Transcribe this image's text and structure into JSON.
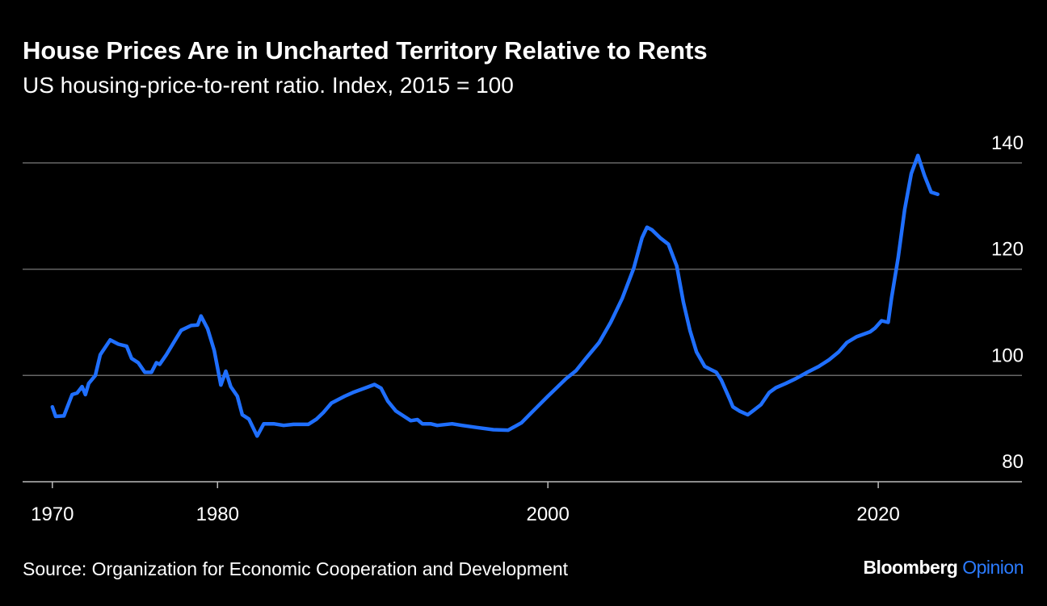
{
  "chart_data": {
    "type": "line",
    "title": "House Prices Are in Uncharted Territory Relative to Rents",
    "subtitle": "US housing-price-to-rent ratio. Index, 2015 = 100",
    "source": "Source: Organization for Economic Cooperation and Development",
    "brand": [
      "Bloomberg",
      "Opinion"
    ],
    "xlim": [
      1968.2,
      2028.7
    ],
    "xticks": [
      1970,
      1980,
      2000,
      2020
    ],
    "ylim": [
      80,
      145
    ],
    "yticks": [
      80,
      100,
      120,
      140
    ],
    "grid": true,
    "series": [
      {
        "color": "#1f6fff",
        "x": [
          1970.0,
          1970.2,
          1970.7,
          1971.2,
          1971.5,
          1971.8,
          1972.0,
          1972.2,
          1972.6,
          1972.9,
          1973.5,
          1974.0,
          1974.5,
          1974.8,
          1975.2,
          1975.6,
          1976.0,
          1976.3,
          1976.5,
          1976.9,
          1977.5,
          1977.8,
          1978.4,
          1978.8,
          1979.0,
          1979.4,
          1979.8,
          1980.2,
          1980.5,
          1980.8,
          1981.2,
          1981.5,
          1981.9,
          1982.4,
          1982.8,
          1983.4,
          1984.0,
          1984.6,
          1985.5,
          1986.0,
          1986.4,
          1986.9,
          1987.7,
          1988.2,
          1988.9,
          1989.5,
          1989.9,
          1990.3,
          1990.8,
          1991.7,
          1992.1,
          1992.4,
          1992.9,
          1993.3,
          1994.2,
          1994.8,
          1995.7,
          1996.7,
          1997.6,
          1998.4,
          1999.1,
          2000.0,
          2000.6,
          2001.1,
          2001.7,
          2002.3,
          2003.1,
          2003.8,
          2004.5,
          2005.2,
          2005.7,
          2006.0,
          2006.3,
          2006.8,
          2007.3,
          2007.8,
          2008.2,
          2008.6,
          2009.0,
          2009.5,
          2009.8,
          2010.2,
          2010.5,
          2011.0,
          2011.2,
          2011.6,
          2012.1,
          2012.4,
          2012.9,
          2013.4,
          2013.8,
          2014.4,
          2015.0,
          2015.7,
          2016.4,
          2017.0,
          2017.6,
          2018.1,
          2018.7,
          2019.5,
          2019.8,
          2020.2,
          2020.6,
          2020.8,
          2021.2,
          2021.6,
          2022.0,
          2022.4,
          2022.8,
          2023.2,
          2023.6
        ],
        "values": [
          94.1,
          92.3,
          92.4,
          96.4,
          96.7,
          97.9,
          96.4,
          98.5,
          100,
          103.9,
          106.7,
          105.9,
          105.5,
          103.2,
          102.4,
          100.6,
          100.6,
          102.4,
          102.1,
          103.9,
          107,
          108.5,
          109.4,
          109.5,
          111.2,
          108.8,
          104.7,
          98.2,
          100.8,
          97.9,
          96.1,
          92.6,
          91.8,
          88.6,
          90.9,
          90.9,
          90.6,
          90.8,
          90.8,
          91.8,
          93,
          94.8,
          96.1,
          96.8,
          97.6,
          98.3,
          97.6,
          95.2,
          93.3,
          91.5,
          91.7,
          90.9,
          90.9,
          90.6,
          90.9,
          90.6,
          90.2,
          89.8,
          89.7,
          91.1,
          93.3,
          96.1,
          97.9,
          99.4,
          100.9,
          103.2,
          106.2,
          110,
          114.5,
          120.2,
          125.9,
          127.9,
          127.4,
          125.9,
          124.7,
          120.6,
          113.8,
          108.5,
          104.4,
          101.7,
          101.2,
          100.6,
          99.1,
          95.6,
          94.1,
          93.3,
          92.6,
          93.3,
          94.5,
          96.8,
          97.7,
          98.5,
          99.4,
          100.6,
          101.7,
          102.9,
          104.4,
          106.2,
          107.3,
          108.2,
          108.9,
          110.3,
          110,
          114.5,
          122.1,
          131.2,
          138,
          141.4,
          137.6,
          134.5,
          134.1
        ]
      }
    ]
  }
}
